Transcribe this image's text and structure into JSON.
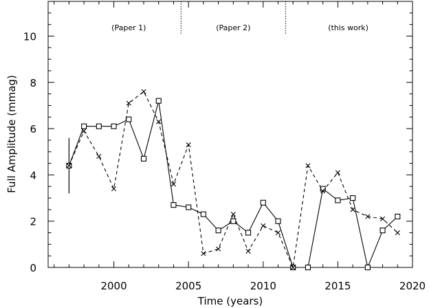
{
  "chart_data": {
    "type": "line",
    "title": "",
    "xlabel": "Time (years)",
    "ylabel": "Full Amplitude (mmag)",
    "xlim": [
      1995.6,
      2020
    ],
    "ylim": [
      0,
      11.5
    ],
    "xticks": [
      2000,
      2005,
      2010,
      2015,
      2020
    ],
    "yticks": [
      0,
      2,
      4,
      6,
      8,
      10
    ],
    "grid": false,
    "series": [
      {
        "marker": "square",
        "linestyle": "solid",
        "points": [
          [
            1997,
            4.4
          ],
          [
            1998,
            6.1
          ],
          [
            1999,
            6.1
          ],
          [
            2000,
            6.1
          ],
          [
            2001,
            6.4
          ],
          [
            2002,
            4.7
          ],
          [
            2003,
            7.2
          ],
          [
            2004,
            2.7
          ],
          [
            2005,
            2.6
          ],
          [
            2006,
            2.3
          ],
          [
            2007,
            1.6
          ],
          [
            2008,
            2.0
          ],
          [
            2009,
            1.5
          ],
          [
            2010,
            2.8
          ],
          [
            2011,
            2.0
          ],
          [
            2012,
            0.0
          ],
          [
            2013,
            0.0
          ],
          [
            2014,
            3.4
          ],
          [
            2015,
            2.9
          ],
          [
            2016,
            3.0
          ],
          [
            2017,
            0.0
          ],
          [
            2018,
            1.6
          ],
          [
            2019,
            2.2
          ]
        ]
      },
      {
        "marker": "cross",
        "linestyle": "dashed",
        "points": [
          [
            1997,
            4.4
          ],
          [
            1998,
            5.9
          ],
          [
            1999,
            4.8
          ],
          [
            2000,
            3.4
          ],
          [
            2001,
            7.1
          ],
          [
            2002,
            7.6
          ],
          [
            2003,
            6.3
          ],
          [
            2004,
            3.6
          ],
          [
            2005,
            5.3
          ],
          [
            2006,
            0.6
          ],
          [
            2007,
            0.8
          ],
          [
            2008,
            2.3
          ],
          [
            2009,
            0.7
          ],
          [
            2010,
            1.8
          ],
          [
            2011,
            1.5
          ],
          [
            2012,
            0.0
          ],
          [
            2013,
            4.4
          ],
          [
            2014,
            3.3
          ],
          [
            2015,
            4.1
          ],
          [
            2016,
            2.5
          ],
          [
            2017,
            2.2
          ],
          [
            2018,
            2.1
          ],
          [
            2019,
            1.5
          ]
        ]
      }
    ],
    "error_bar": {
      "x": 1997,
      "low": 3.2,
      "high": 5.6
    },
    "dividers": [
      2004.5,
      2011.5
    ],
    "annotations": [
      {
        "x": 2001.0,
        "text": "(Paper 1)"
      },
      {
        "x": 2008.0,
        "text": "(Paper 2)"
      },
      {
        "x": 2015.7,
        "text": "(this work)"
      }
    ]
  }
}
